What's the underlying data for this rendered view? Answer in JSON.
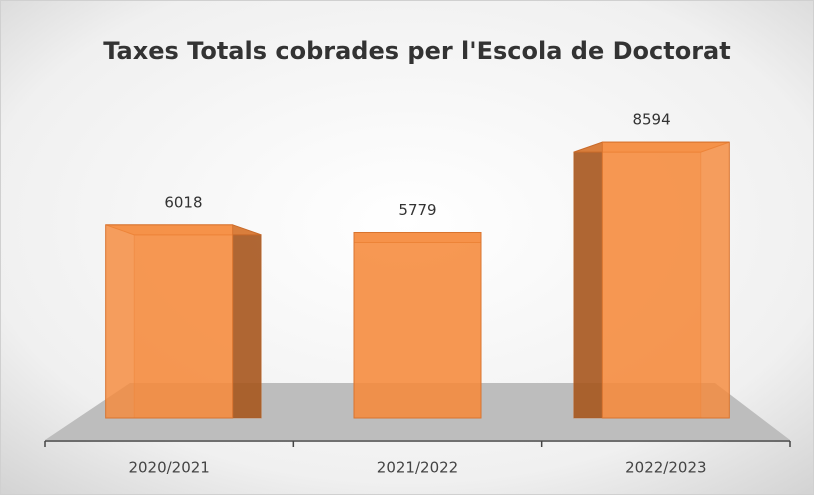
{
  "chart_data": {
    "type": "bar3d",
    "title": "Taxes Totals cobrades per l'Escola de Doctorat",
    "categories": [
      "2020/2021",
      "2021/2022",
      "2022/2023"
    ],
    "values": [
      6018,
      5779,
      8594
    ],
    "color": "#f58a3c"
  }
}
